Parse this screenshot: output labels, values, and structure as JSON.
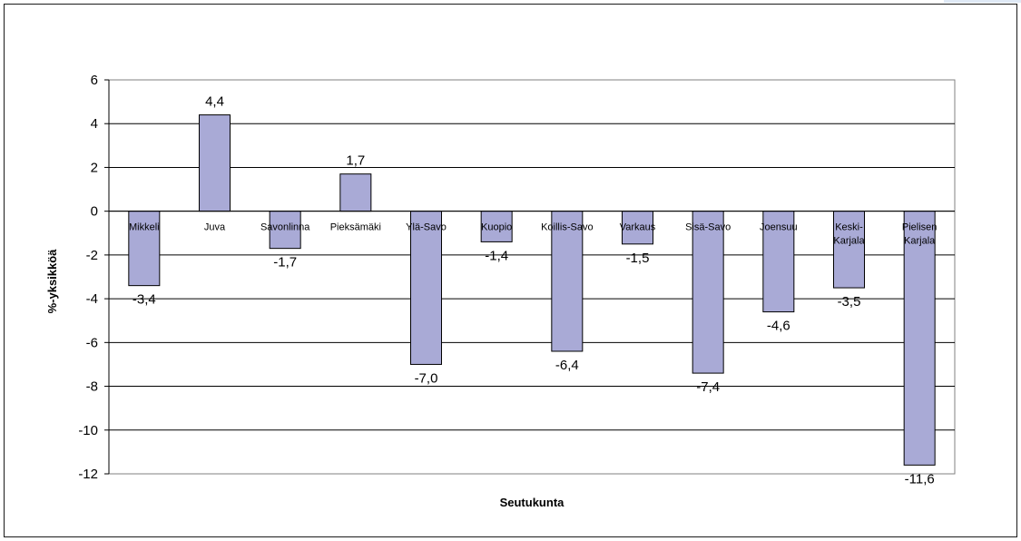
{
  "chart_data": {
    "type": "bar",
    "categories": [
      "Mikkeli",
      "Juva",
      "Savonlinna",
      "Pieksämäki",
      "Ylä-Savo",
      "Kuopio",
      "Koillis-Savo",
      "Varkaus",
      "Sisä-Savo",
      "Joensuu",
      "Keski-Karjala",
      "Pielisen Karjala"
    ],
    "category_lines": [
      [
        "Mikkeli"
      ],
      [
        "Juva"
      ],
      [
        "Savonlinna"
      ],
      [
        "Pieksämäki"
      ],
      [
        "Ylä-Savo"
      ],
      [
        "Kuopio"
      ],
      [
        "Koillis-Savo"
      ],
      [
        "Varkaus"
      ],
      [
        "Sisä-Savo"
      ],
      [
        "Joensuu"
      ],
      [
        "Keski-",
        "Karjala"
      ],
      [
        "Pielisen",
        "Karjala"
      ]
    ],
    "values": [
      -3.4,
      4.4,
      -1.7,
      1.7,
      -7.0,
      -1.4,
      -6.4,
      -1.5,
      -7.4,
      -4.6,
      -3.5,
      -11.6
    ],
    "data_labels": [
      "-3,4",
      "4,4",
      "-1,7",
      "1,7",
      "-7,0",
      "-1,4",
      "-6,4",
      "-1,5",
      "-7,4",
      "-4,6",
      "-3,5",
      "-11,6"
    ],
    "title": "",
    "xlabel": "Seutukunta",
    "ylabel": "%-yksikköä",
    "ylim": [
      -12,
      6
    ],
    "yticks": [
      6,
      4,
      2,
      0,
      -2,
      -4,
      -6,
      -8,
      -10,
      -12
    ],
    "grid": true,
    "legend": "none",
    "colors": {
      "bar_fill": "#a9aad6",
      "bar_stroke": "#000000",
      "grid": "#000000",
      "plot_border": "#808080"
    }
  }
}
